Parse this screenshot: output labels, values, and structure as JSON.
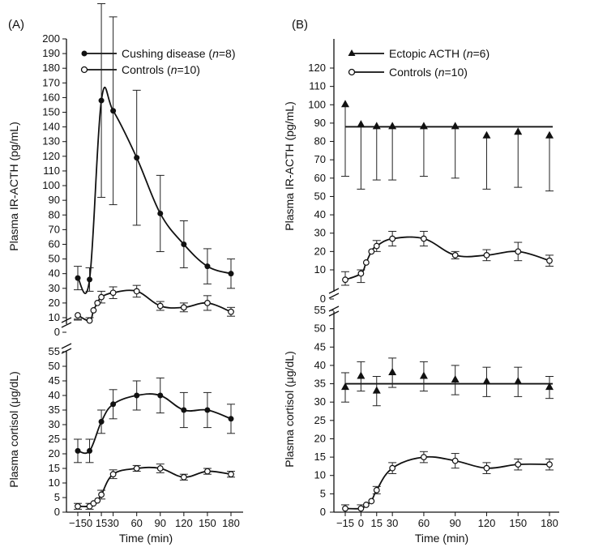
{
  "panels": {
    "A": {
      "label": "(A)"
    },
    "B": {
      "label": "(B)"
    }
  },
  "legend": {
    "A": [
      {
        "text": "Cushing disease (",
        "n": "n",
        "rest": "=8)",
        "marker": "filled-circle"
      },
      {
        "text": "Controls (",
        "n": "n",
        "rest": "=10)",
        "marker": "open-circle"
      }
    ],
    "B": [
      {
        "text": "Ectopic ACTH (",
        "n": "n",
        "rest": "=6)",
        "marker": "filled-triangle"
      },
      {
        "text": "Controls (",
        "n": "n",
        "rest": "=10)",
        "marker": "open-circle"
      }
    ]
  },
  "axis_labels": {
    "acth": "Plasma IR-ACTH (pg/mL)",
    "cortisol": "Plasma cortisol (μg/dL)",
    "time": "Time (min)"
  },
  "chart_data": [
    {
      "type": "line",
      "panel": "A-top",
      "ylabel": "Plasma IR-ACTH (pg/mL)",
      "xlabel": "",
      "x_ticks": [
        -15,
        0,
        15,
        30,
        60,
        90,
        120,
        150,
        180
      ],
      "ylim": [
        0,
        200
      ],
      "y_ticks": [
        0,
        10,
        20,
        30,
        40,
        50,
        60,
        70,
        80,
        90,
        100,
        110,
        120,
        130,
        140,
        150,
        160,
        170,
        180,
        190,
        200
      ],
      "axis_break": true,
      "series": [
        {
          "name": "Cushing disease (n=8)",
          "marker": "filled-circle",
          "x": [
            -15,
            0,
            15,
            30,
            60,
            90,
            120,
            150,
            180
          ],
          "y": [
            37,
            36,
            158,
            151,
            119,
            81,
            60,
            45,
            40
          ],
          "err": [
            8,
            8,
            66,
            64,
            46,
            26,
            16,
            12,
            10
          ]
        },
        {
          "name": "Controls (n=10)",
          "marker": "open-circle",
          "x": [
            -15,
            0,
            5,
            10,
            15,
            30,
            60,
            90,
            120,
            150,
            180
          ],
          "y": [
            7,
            8,
            15,
            20,
            24,
            27,
            28,
            18,
            17,
            20,
            14
          ],
          "err": [
            2,
            2,
            3,
            3,
            4,
            4,
            4,
            3,
            3,
            5,
            3
          ]
        }
      ]
    },
    {
      "type": "line",
      "panel": "A-bottom",
      "ylabel": "Plasma cortisol (μg/dL)",
      "xlabel": "Time (min)",
      "x_ticks": [
        -15,
        0,
        15,
        30,
        60,
        90,
        120,
        150,
        180
      ],
      "ylim": [
        0,
        55
      ],
      "y_ticks": [
        0,
        5,
        10,
        15,
        20,
        25,
        30,
        35,
        40,
        45,
        50,
        55
      ],
      "series": [
        {
          "name": "Cushing disease (n=8)",
          "marker": "filled-circle",
          "x": [
            -15,
            0,
            15,
            30,
            60,
            90,
            120,
            150,
            180
          ],
          "y": [
            21,
            21,
            31,
            37,
            40,
            40,
            35,
            35,
            32
          ],
          "err": [
            4,
            4,
            4,
            5,
            5,
            6,
            6,
            6,
            5
          ]
        },
        {
          "name": "Controls (n=10)",
          "marker": "open-circle",
          "x": [
            -15,
            0,
            5,
            10,
            15,
            30,
            60,
            90,
            120,
            150,
            180
          ],
          "y": [
            2,
            2,
            3,
            4,
            6,
            13,
            15,
            15,
            12,
            14,
            13
          ],
          "err": [
            1,
            1,
            1,
            1,
            1.5,
            1.5,
            1,
            1.5,
            1,
            1,
            1
          ]
        }
      ]
    },
    {
      "type": "line",
      "panel": "B-top",
      "ylabel": "Plasma IR-ACTH (pg/mL)",
      "xlabel": "",
      "x_ticks": [
        -15,
        0,
        15,
        30,
        60,
        90,
        120,
        150,
        180
      ],
      "ylim": [
        0,
        120
      ],
      "y_ticks": [
        0,
        10,
        20,
        30,
        40,
        50,
        60,
        70,
        80,
        90,
        100,
        110,
        120
      ],
      "axis_break": true,
      "series": [
        {
          "name": "Ectopic ACTH (n=6)",
          "marker": "filled-triangle",
          "x": [
            -15,
            0,
            15,
            30,
            60,
            90,
            120,
            150,
            180
          ],
          "y": [
            100,
            89,
            88,
            88,
            88,
            88,
            83,
            85,
            83
          ],
          "err_low": [
            39,
            35,
            29,
            29,
            27,
            28,
            29,
            30,
            30
          ],
          "err_high": [
            0,
            0,
            0,
            0,
            0,
            0,
            0,
            0,
            0
          ],
          "fit_line": 88
        },
        {
          "name": "Controls (n=10)",
          "marker": "open-circle",
          "x": [
            -15,
            0,
            5,
            10,
            15,
            30,
            60,
            90,
            120,
            150,
            180
          ],
          "y": [
            7,
            8,
            14,
            20,
            23,
            27,
            27,
            18,
            18,
            20,
            15
          ],
          "err": [
            2,
            2,
            3,
            3,
            3,
            4,
            4,
            2,
            3,
            5,
            3
          ]
        }
      ]
    },
    {
      "type": "line",
      "panel": "B-bottom",
      "ylabel": "Plasma cortisol (μg/dL)",
      "xlabel": "Time (min)",
      "x_ticks": [
        -15,
        0,
        15,
        30,
        60,
        90,
        120,
        150,
        180
      ],
      "ylim": [
        0,
        55
      ],
      "y_ticks": [
        0,
        5,
        10,
        15,
        20,
        25,
        30,
        35,
        40,
        45,
        50,
        55
      ],
      "series": [
        {
          "name": "Ectopic ACTH (n=6)",
          "marker": "filled-triangle",
          "x": [
            -15,
            0,
            15,
            30,
            60,
            90,
            120,
            150,
            180
          ],
          "y": [
            34,
            37,
            33,
            38,
            37,
            36,
            35.5,
            35.5,
            34
          ],
          "err": [
            4,
            4,
            4,
            4,
            4,
            4,
            4,
            4,
            3
          ],
          "fit_line": 35
        },
        {
          "name": "Controls (n=10)",
          "marker": "open-circle",
          "x": [
            -15,
            0,
            5,
            10,
            15,
            30,
            60,
            90,
            120,
            150,
            180
          ],
          "y": [
            1,
            1,
            2,
            3,
            6,
            12,
            15,
            14,
            12,
            13,
            13
          ],
          "err": [
            1,
            1,
            1,
            1,
            1,
            1.5,
            1.5,
            2,
            1.5,
            1.5,
            1.5
          ]
        }
      ]
    }
  ]
}
